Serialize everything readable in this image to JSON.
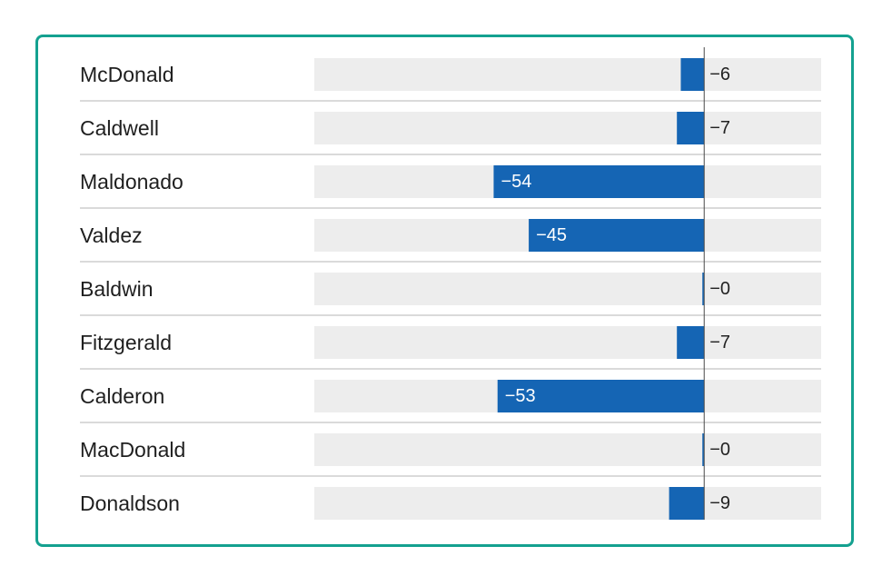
{
  "chart_data": {
    "type": "bar",
    "orientation": "horizontal",
    "categories": [
      "McDonald",
      "Caldwell",
      "Maldonado",
      "Valdez",
      "Baldwin",
      "Fitzgerald",
      "Calderon",
      "MacDonald",
      "Donaldson"
    ],
    "values": [
      -6,
      -7,
      -54,
      -45,
      0,
      -7,
      -53,
      0,
      -9
    ],
    "value_labels": [
      "−6",
      "−7",
      "−54",
      "−45",
      "−0",
      "−7",
      "−53",
      "−0",
      "−9"
    ],
    "xlim": [
      -100,
      30
    ],
    "title": "",
    "xlabel": "",
    "ylabel": "",
    "grid": false,
    "legend": "none",
    "colors": {
      "bar": "#1565b4",
      "track": "#ededed",
      "zero_line": "#4a4a4a",
      "separator": "#b5b5b5",
      "label_outside": "#222222",
      "label_inside": "#ffffff",
      "frame": "#14a190"
    }
  }
}
